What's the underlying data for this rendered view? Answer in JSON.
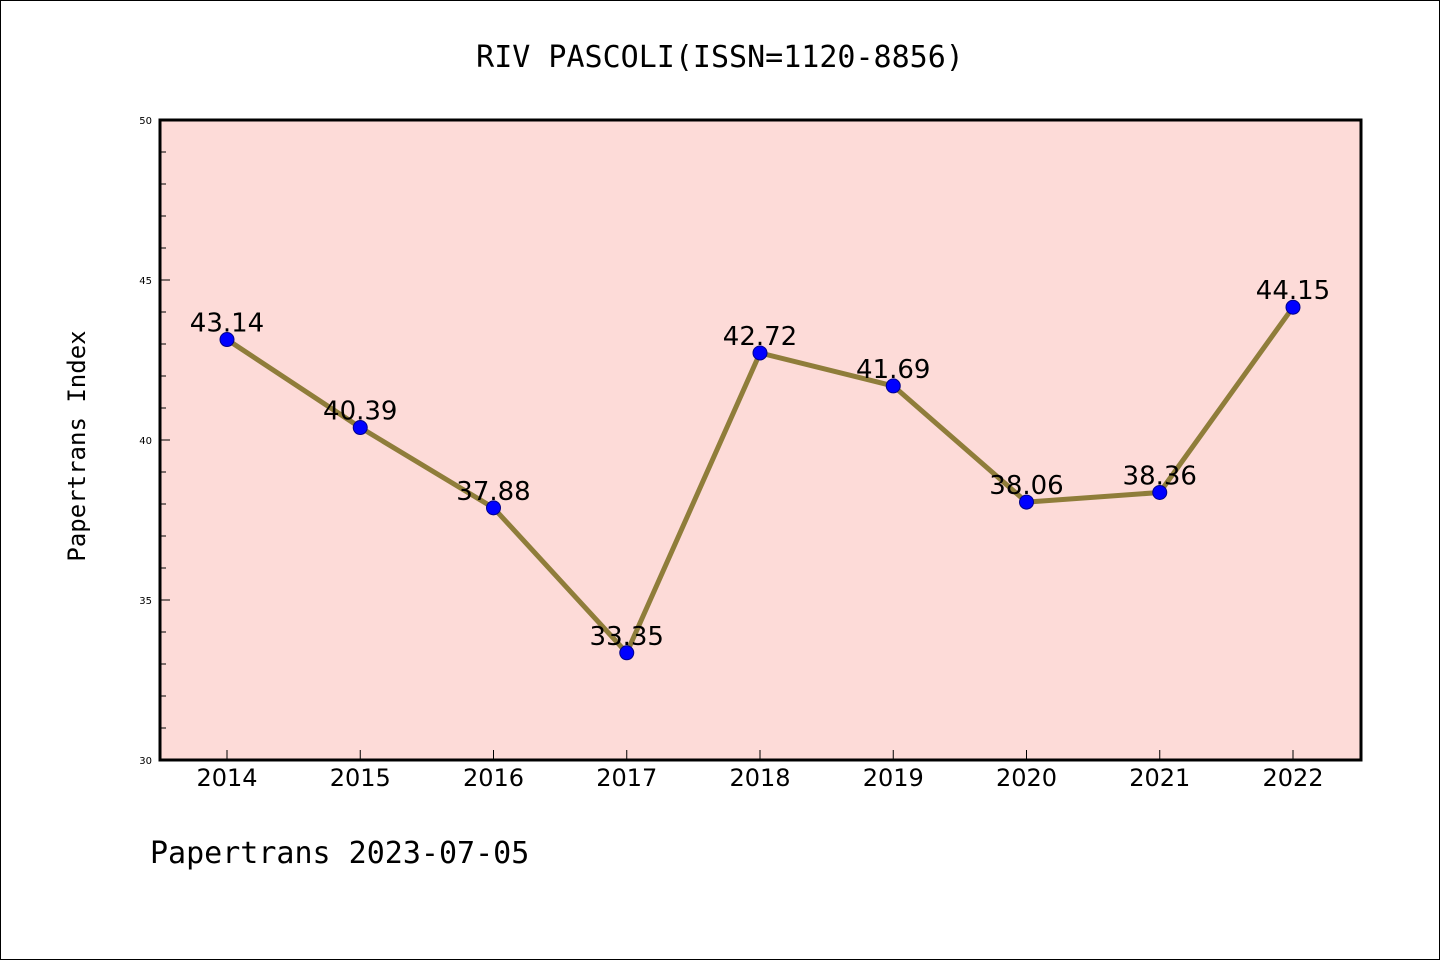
{
  "footer_text": "Papertrans 2023-07-05",
  "colors": {
    "plot_background": "#fddbd8",
    "line": "#8f7d3a",
    "marker": "#0000ff",
    "axis": "#000000"
  },
  "chart_data": {
    "type": "line",
    "title": "RIV PASCOLI(ISSN=1120-8856)",
    "xlabel": "",
    "ylabel": "Papertrans Index",
    "categories": [
      "2014",
      "2015",
      "2016",
      "2017",
      "2018",
      "2019",
      "2020",
      "2021",
      "2022"
    ],
    "values": [
      43.14,
      40.39,
      37.88,
      33.35,
      42.72,
      41.69,
      38.06,
      38.36,
      44.15
    ],
    "data_labels": [
      "43.14",
      "40.39",
      "37.88",
      "33.35",
      "42.72",
      "41.69",
      "38.06",
      "38.36",
      "44.15"
    ],
    "ylim": [
      30,
      50
    ],
    "yticks": [
      "30",
      "35",
      "40",
      "45",
      "50"
    ],
    "grid": false,
    "legend": "none"
  }
}
